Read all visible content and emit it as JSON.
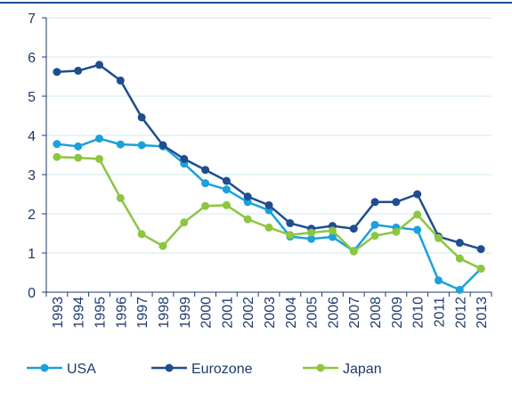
{
  "chart_data": {
    "type": "line",
    "categories": [
      "1993",
      "1994",
      "1995",
      "1996",
      "1997",
      "1998",
      "1999",
      "2000",
      "2001",
      "2002",
      "2003",
      "2004",
      "2005",
      "2006",
      "2007",
      "2008",
      "2009",
      "2010",
      "2011",
      "2012",
      "2013"
    ],
    "series": [
      {
        "name": "USA",
        "color": "#1ba1db",
        "values": [
          3.78,
          3.72,
          3.92,
          3.77,
          3.75,
          3.72,
          3.28,
          2.78,
          2.62,
          2.3,
          2.09,
          1.42,
          1.36,
          1.41,
          1.05,
          1.72,
          1.65,
          1.59,
          0.3,
          0.06,
          0.6
        ]
      },
      {
        "name": "Eurozone",
        "color": "#1f4e8f",
        "values": [
          5.62,
          5.65,
          5.8,
          5.4,
          4.46,
          3.75,
          3.4,
          3.12,
          2.84,
          2.44,
          2.22,
          1.76,
          1.62,
          1.69,
          1.62,
          2.3,
          2.3,
          2.5,
          1.42,
          1.26,
          1.1
        ]
      },
      {
        "name": "Japan",
        "color": "#8dc63f",
        "values": [
          3.45,
          3.43,
          3.4,
          2.4,
          1.48,
          1.18,
          1.78,
          2.2,
          2.22,
          1.86,
          1.65,
          1.46,
          1.52,
          1.57,
          1.04,
          1.44,
          1.54,
          1.98,
          1.38,
          0.86,
          0.6
        ]
      }
    ],
    "ylim": [
      0,
      7
    ],
    "yticks": [
      0,
      1,
      2,
      3,
      4,
      5,
      6,
      7
    ],
    "grid": true,
    "legend": "bottom"
  }
}
